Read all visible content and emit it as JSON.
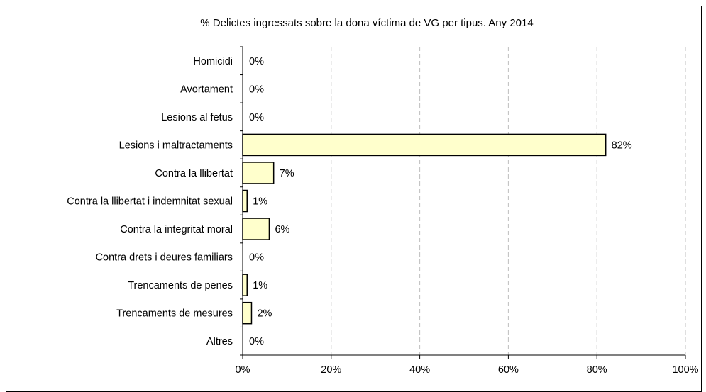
{
  "chart_data": {
    "type": "bar",
    "orientation": "horizontal",
    "title": "% Delictes ingressats sobre la dona víctima de VG per tipus. Any 2014",
    "categories": [
      "Homicidi",
      "Avortament",
      "Lesions al fetus",
      "Lesions i maltractaments",
      "Contra la llibertat",
      "Contra la llibertat i indemnitat sexual",
      "Contra la integritat moral",
      "Contra drets i deures familiars",
      "Trencaments de penes",
      "Trencaments de mesures",
      "Altres"
    ],
    "values": [
      0,
      0,
      0,
      82,
      7,
      1,
      6,
      0,
      1,
      2,
      0
    ],
    "value_labels": [
      "0%",
      "0%",
      "0%",
      "82%",
      "7%",
      "1%",
      "6%",
      "0%",
      "1%",
      "2%",
      "0%"
    ],
    "xlim": [
      0,
      100
    ],
    "x_ticks": [
      0,
      20,
      40,
      60,
      80,
      100
    ],
    "x_tick_labels": [
      "0%",
      "20%",
      "40%",
      "60%",
      "80%",
      "100%"
    ],
    "grid": "vertical dashed",
    "legend": "none",
    "colors": {
      "bar_fill": "#ffffcc",
      "bar_stroke": "#000000",
      "grid": "#bfbfbf"
    }
  }
}
